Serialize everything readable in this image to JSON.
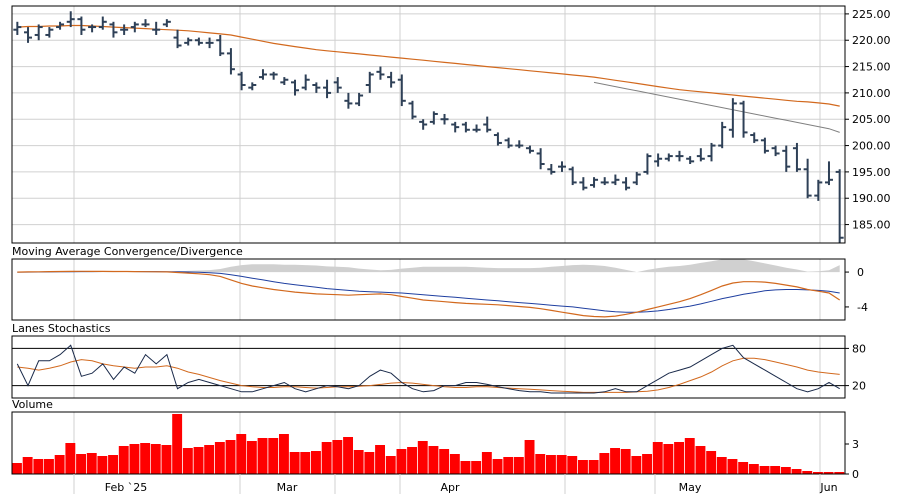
{
  "chart_data": {
    "type": "ohlc",
    "x_labels": [
      "Feb `25",
      "Mar",
      "Apr",
      "May",
      "Jun"
    ],
    "price": {
      "ticks": [
        "225.00",
        "220.00",
        "215.00",
        "210.00",
        "205.00",
        "200.00",
        "195.00",
        "190.00",
        "185.00"
      ],
      "ylim": [
        181.5,
        226.5
      ],
      "ohlc": [
        [
          222.0,
          223.5,
          221.0,
          222.5
        ],
        [
          221.5,
          222.5,
          219.5,
          220.5
        ],
        [
          221.0,
          223.0,
          220.0,
          222.5
        ],
        [
          221.0,
          222.5,
          220.5,
          222.0
        ],
        [
          222.5,
          223.5,
          222.0,
          223.0
        ],
        [
          223.5,
          225.5,
          222.5,
          224.0
        ],
        [
          224.0,
          224.5,
          221.0,
          222.0
        ],
        [
          222.5,
          223.0,
          221.5,
          222.5
        ],
        [
          222.5,
          224.5,
          222.0,
          223.5
        ],
        [
          223.0,
          223.5,
          220.5,
          221.5
        ],
        [
          222.0,
          223.0,
          221.0,
          222.0
        ],
        [
          222.5,
          223.5,
          221.5,
          223.0
        ],
        [
          223.0,
          224.0,
          222.5,
          223.0
        ],
        [
          222.0,
          223.5,
          221.0,
          222.0
        ],
        [
          223.0,
          224.0,
          222.5,
          223.5
        ],
        [
          220.5,
          222.0,
          218.5,
          219.0
        ],
        [
          219.5,
          220.5,
          219.0,
          220.0
        ],
        [
          220.0,
          220.5,
          219.0,
          219.5
        ],
        [
          219.5,
          220.5,
          218.5,
          219.5
        ],
        [
          220.0,
          221.0,
          217.0,
          217.5
        ],
        [
          217.5,
          218.5,
          213.5,
          214.5
        ],
        [
          213.5,
          214.0,
          210.5,
          211.5
        ],
        [
          211.0,
          212.0,
          210.5,
          211.5
        ],
        [
          213.0,
          214.5,
          212.5,
          213.5
        ],
        [
          213.5,
          214.0,
          212.5,
          213.5
        ],
        [
          212.0,
          213.0,
          211.5,
          212.5
        ],
        [
          212.0,
          212.5,
          209.5,
          210.5
        ],
        [
          211.0,
          213.5,
          210.5,
          212.5
        ],
        [
          211.5,
          212.0,
          210.0,
          211.0
        ],
        [
          211.0,
          212.5,
          209.0,
          210.0
        ],
        [
          212.0,
          213.0,
          210.0,
          211.0
        ],
        [
          208.5,
          210.0,
          207.0,
          208.0
        ],
        [
          208.0,
          210.0,
          207.5,
          209.5
        ],
        [
          211.5,
          214.0,
          210.0,
          213.5
        ],
        [
          214.0,
          215.0,
          212.5,
          213.5
        ],
        [
          213.0,
          214.0,
          211.0,
          212.0
        ],
        [
          212.5,
          213.5,
          207.5,
          208.5
        ],
        [
          208.0,
          208.5,
          205.0,
          205.5
        ],
        [
          204.5,
          205.0,
          203.0,
          204.0
        ],
        [
          204.5,
          206.5,
          204.0,
          206.0
        ],
        [
          205.0,
          206.0,
          204.0,
          205.0
        ],
        [
          204.0,
          204.5,
          202.5,
          203.5
        ],
        [
          204.0,
          204.5,
          202.5,
          203.0
        ],
        [
          203.0,
          204.0,
          202.5,
          203.0
        ],
        [
          204.0,
          205.5,
          202.5,
          203.0
        ],
        [
          202.0,
          202.5,
          200.0,
          200.5
        ],
        [
          201.0,
          201.5,
          199.5,
          200.0
        ],
        [
          200.0,
          201.0,
          199.5,
          200.0
        ],
        [
          199.5,
          200.0,
          198.5,
          199.0
        ],
        [
          198.5,
          199.5,
          195.5,
          196.5
        ],
        [
          195.5,
          196.5,
          194.5,
          195.0
        ],
        [
          196.0,
          197.0,
          195.0,
          196.0
        ],
        [
          195.5,
          196.0,
          192.5,
          193.0
        ],
        [
          193.0,
          194.0,
          191.5,
          192.0
        ],
        [
          192.5,
          194.0,
          192.0,
          193.5
        ],
        [
          193.0,
          194.0,
          192.5,
          193.0
        ],
        [
          193.0,
          194.5,
          192.5,
          193.5
        ],
        [
          193.0,
          194.0,
          191.5,
          192.0
        ],
        [
          193.0,
          195.0,
          192.5,
          194.5
        ],
        [
          195.0,
          198.5,
          194.5,
          198.0
        ],
        [
          197.0,
          198.5,
          196.0,
          197.5
        ],
        [
          197.5,
          198.5,
          197.0,
          198.0
        ],
        [
          198.0,
          199.0,
          197.0,
          198.0
        ],
        [
          197.5,
          198.0,
          196.5,
          197.0
        ],
        [
          198.0,
          199.5,
          197.0,
          197.5
        ],
        [
          198.0,
          200.5,
          197.0,
          200.0
        ],
        [
          200.0,
          204.5,
          199.5,
          203.5
        ],
        [
          203.0,
          209.0,
          201.5,
          208.0
        ],
        [
          208.0,
          208.5,
          201.5,
          202.5
        ],
        [
          202.0,
          202.5,
          200.5,
          201.0
        ],
        [
          201.0,
          201.5,
          198.5,
          199.0
        ],
        [
          199.5,
          200.0,
          198.0,
          198.5
        ],
        [
          199.0,
          200.0,
          195.0,
          196.0
        ],
        [
          199.5,
          200.5,
          195.0,
          195.5
        ],
        [
          195.5,
          197.5,
          190.0,
          190.5
        ],
        [
          190.5,
          193.5,
          189.5,
          193.0
        ],
        [
          193.0,
          197.0,
          192.5,
          193.5
        ],
        [
          195.0,
          195.5,
          181.5,
          182.5
        ]
      ],
      "ma_long": [
        222.5,
        222.6,
        222.6,
        222.7,
        222.7,
        222.8,
        222.8,
        222.7,
        222.6,
        222.5,
        222.4,
        222.3,
        222.2,
        222.1,
        222.0,
        221.9,
        221.8,
        221.6,
        221.4,
        221.2,
        221.0,
        220.6,
        220.2,
        219.8,
        219.4,
        219.1,
        218.8,
        218.5,
        218.2,
        218.0,
        217.8,
        217.6,
        217.4,
        217.2,
        217.0,
        216.8,
        216.6,
        216.4,
        216.2,
        216.0,
        215.8,
        215.6,
        215.4,
        215.2,
        215.0,
        214.8,
        214.6,
        214.4,
        214.2,
        214.0,
        213.8,
        213.6,
        213.4,
        213.2,
        213.0,
        212.7,
        212.4,
        212.1,
        211.8,
        211.5,
        211.2,
        210.9,
        210.6,
        210.4,
        210.2,
        210.0,
        209.8,
        209.6,
        209.4,
        209.2,
        209.0,
        208.8,
        208.6,
        208.4,
        208.3,
        208.1,
        207.9,
        207.5
      ],
      "ma_short_from": 54,
      "ma_short": [
        212.0,
        211.6,
        211.2,
        210.8,
        210.4,
        210.0,
        209.6,
        209.2,
        208.8,
        208.4,
        208.0,
        207.6,
        207.2,
        206.8,
        206.4,
        206.0,
        205.6,
        205.2,
        204.8,
        204.4,
        204.0,
        203.6,
        203.2,
        202.5
      ]
    },
    "macd": {
      "title": "Moving Average Convergence/Divergence",
      "ticks": [
        "0",
        "-4"
      ],
      "ylim": [
        -5.5,
        1.5
      ],
      "macd": [
        0,
        0.02,
        0.03,
        0.05,
        0.06,
        0.08,
        0.09,
        0.08,
        0.08,
        0.07,
        0.06,
        0.05,
        0.04,
        0.03,
        0.02,
        -0.05,
        -0.12,
        -0.2,
        -0.3,
        -0.5,
        -0.9,
        -1.3,
        -1.6,
        -1.8,
        -2.0,
        -2.15,
        -2.3,
        -2.4,
        -2.5,
        -2.55,
        -2.6,
        -2.65,
        -2.6,
        -2.55,
        -2.5,
        -2.6,
        -2.8,
        -3.0,
        -3.2,
        -3.3,
        -3.4,
        -3.5,
        -3.6,
        -3.65,
        -3.7,
        -3.75,
        -3.85,
        -3.95,
        -4.05,
        -4.2,
        -4.4,
        -4.6,
        -4.8,
        -5.0,
        -5.1,
        -5.15,
        -5.05,
        -4.85,
        -4.6,
        -4.3,
        -4.0,
        -3.7,
        -3.4,
        -3.05,
        -2.6,
        -2.1,
        -1.6,
        -1.25,
        -1.1,
        -1.1,
        -1.15,
        -1.3,
        -1.5,
        -1.7,
        -2.0,
        -2.2,
        -2.4,
        -3.2
      ],
      "signal": [
        0,
        0,
        0.01,
        0.02,
        0.03,
        0.04,
        0.05,
        0.05,
        0.06,
        0.06,
        0.06,
        0.06,
        0.05,
        0.05,
        0.04,
        0.03,
        0.01,
        -0.02,
        -0.07,
        -0.15,
        -0.3,
        -0.5,
        -0.7,
        -0.9,
        -1.1,
        -1.3,
        -1.45,
        -1.6,
        -1.75,
        -1.9,
        -2.0,
        -2.1,
        -2.2,
        -2.25,
        -2.3,
        -2.35,
        -2.4,
        -2.5,
        -2.6,
        -2.7,
        -2.8,
        -2.9,
        -3.0,
        -3.1,
        -3.2,
        -3.3,
        -3.4,
        -3.5,
        -3.6,
        -3.7,
        -3.8,
        -3.9,
        -4.0,
        -4.15,
        -4.3,
        -4.45,
        -4.55,
        -4.6,
        -4.6,
        -4.55,
        -4.45,
        -4.3,
        -4.1,
        -3.9,
        -3.65,
        -3.35,
        -3.05,
        -2.8,
        -2.55,
        -2.35,
        -2.15,
        -2.05,
        -2.0,
        -2.0,
        -2.05,
        -2.1,
        -2.2,
        -2.4
      ]
    },
    "stochastic": {
      "title": "Lanes Stochastics",
      "ticks": [
        "80",
        "20"
      ],
      "ylim": [
        0,
        100
      ],
      "k": [
        55,
        20,
        60,
        60,
        70,
        85,
        35,
        40,
        55,
        30,
        50,
        40,
        70,
        55,
        70,
        15,
        25,
        30,
        25,
        20,
        15,
        10,
        10,
        15,
        20,
        25,
        15,
        10,
        15,
        20,
        18,
        15,
        20,
        35,
        45,
        40,
        25,
        15,
        10,
        12,
        20,
        20,
        25,
        25,
        22,
        18,
        15,
        12,
        10,
        10,
        8,
        8,
        8,
        8,
        8,
        10,
        15,
        10,
        10,
        20,
        30,
        40,
        45,
        50,
        60,
        70,
        80,
        85,
        65,
        55,
        45,
        35,
        25,
        15,
        10,
        15,
        25,
        15
      ],
      "d": [
        50,
        48,
        45,
        48,
        52,
        58,
        62,
        60,
        55,
        52,
        50,
        48,
        50,
        50,
        52,
        48,
        42,
        38,
        33,
        28,
        24,
        20,
        18,
        17,
        17,
        18,
        18,
        17,
        16,
        17,
        18,
        18,
        19,
        20,
        22,
        24,
        25,
        24,
        22,
        20,
        18,
        17,
        17,
        18,
        18,
        17,
        16,
        15,
        14,
        13,
        12,
        11,
        10,
        9,
        9,
        9,
        9,
        9,
        10,
        11,
        13,
        17,
        22,
        28,
        34,
        42,
        52,
        60,
        64,
        64,
        62,
        58,
        54,
        50,
        45,
        42,
        40,
        38
      ]
    },
    "volume": {
      "title": "Volume",
      "ticks": [
        "3",
        "0"
      ],
      "ylim": [
        0,
        6.2
      ],
      "values": [
        1.1,
        1.7,
        1.5,
        1.5,
        1.9,
        3.1,
        2.0,
        2.1,
        1.8,
        1.9,
        2.8,
        3.0,
        3.1,
        3.0,
        2.9,
        6.0,
        2.6,
        2.7,
        2.9,
        3.2,
        3.4,
        4.0,
        3.3,
        3.6,
        3.6,
        4.0,
        2.2,
        2.2,
        2.3,
        3.2,
        3.4,
        3.7,
        2.4,
        2.2,
        2.9,
        1.8,
        2.5,
        2.7,
        3.3,
        2.8,
        2.5,
        2.0,
        1.3,
        1.3,
        2.2,
        1.5,
        1.7,
        1.7,
        3.4,
        2.0,
        1.9,
        1.9,
        1.8,
        1.4,
        1.4,
        2.1,
        2.6,
        2.5,
        1.8,
        2.0,
        3.2,
        3.0,
        3.2,
        3.6,
        2.8,
        2.3,
        1.7,
        1.5,
        1.2,
        1.0,
        0.8,
        0.8,
        0.7,
        0.5,
        0.3,
        0.2,
        0.2,
        0.2
      ]
    },
    "colors": {
      "bars": "#2e4057",
      "ma_long": "#d2691e",
      "ma_short": "#808080",
      "macd": "#d2691e",
      "signal": "#1f3fa0",
      "histogram": "#d0d0d0",
      "stoch_k": "#1a2a4a",
      "stoch_d": "#d2691e",
      "volume": "#ff0000",
      "grid": "#d0d0d0",
      "frame": "#000000"
    },
    "grid": true
  }
}
